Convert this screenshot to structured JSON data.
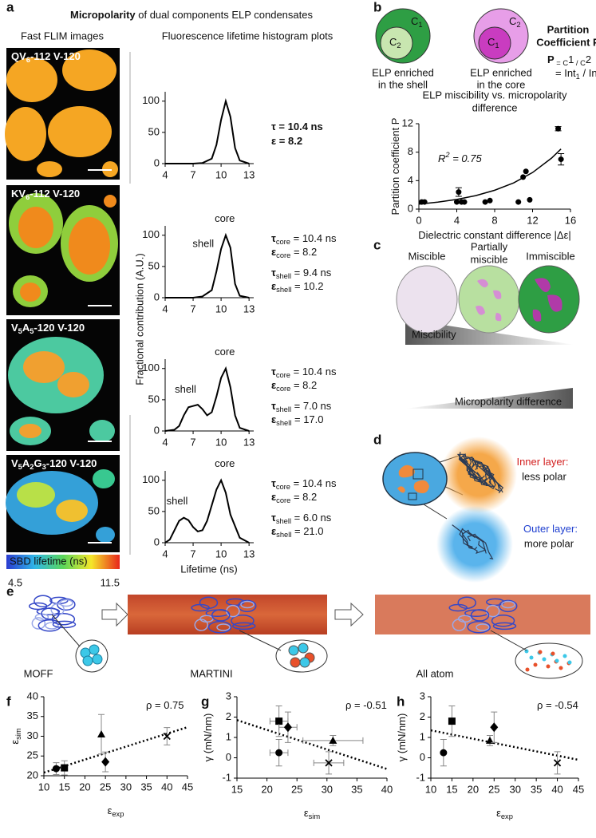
{
  "panel_labels": [
    "a",
    "b",
    "c",
    "d",
    "e",
    "f",
    "g",
    "h"
  ],
  "panel_a": {
    "title_bold": "Micropolarity",
    "title_rest": " of dual components ELP condensates",
    "images_heading": "Fast FLIM images",
    "plots_heading": "Fluorescence lifetime histogram plots",
    "images": [
      [
        "QV",
        "6",
        "-112 V-120"
      ],
      [
        "KV",
        "6",
        "-112 V-120"
      ],
      [
        "V",
        "5",
        "A",
        "5",
        "-120 V-120"
      ],
      [
        "V",
        "5",
        "A",
        "2",
        "G",
        "3",
        "-120 V-120"
      ]
    ],
    "colorbar": {
      "label": "SBD lifetime (ns)",
      "range": [
        4.5,
        11.5
      ]
    },
    "xlabel": "Lifetime (ns)",
    "ylabel": "Fractional contribution (A.U.)"
  },
  "panel_b": {
    "circles": [
      {
        "outer": [
          "C",
          "1"
        ],
        "inner": [
          "C",
          "2"
        ],
        "caption": [
          "ELP enriched",
          "in the shell"
        ]
      },
      {
        "outer": [
          "C",
          "2"
        ],
        "inner": [
          "C",
          "1"
        ],
        "caption": [
          "ELP enriched",
          "in the core"
        ]
      }
    ],
    "heading": [
      "Partition",
      "Coefficient P"
    ],
    "formula": [
      [
        "P",
        " = C",
        "1",
        " / C",
        "2"
      ],
      [
        "= Int",
        "1",
        " / Int",
        "2"
      ]
    ]
  },
  "panel_c": {
    "states": [
      [
        "Miscible"
      ],
      [
        "Partially",
        "miscible"
      ],
      [
        "Immiscible"
      ]
    ],
    "gradients": [
      "Miscibility",
      "Micropolarity difference"
    ]
  },
  "panel_d": {
    "inner": [
      "Inner layer:",
      "less polar"
    ],
    "outer": [
      "Outer layer:",
      "more polar"
    ]
  },
  "panel_e": {
    "stages": [
      "MOFF",
      "MARTINI",
      "All atom"
    ]
  },
  "chart_data": [
    {
      "type": "line",
      "color": "#000000",
      "x": [
        4,
        5,
        6,
        7,
        8,
        9,
        9.5,
        10,
        10.5,
        11,
        11.5,
        12,
        13
      ],
      "values": [
        0,
        0,
        0,
        0,
        1,
        8,
        30,
        70,
        100,
        75,
        25,
        5,
        0
      ],
      "xlim": [
        4,
        13.5
      ],
      "ylim": [
        0,
        115
      ],
      "xticks": [
        4,
        7,
        10,
        13
      ],
      "yticks": [
        0,
        50,
        100
      ],
      "annotations": [
        [
          "τ = 10.4 ns"
        ],
        [
          "ε = 8.2"
        ]
      ]
    },
    {
      "type": "line",
      "color": "#000000",
      "x": [
        4,
        5,
        6,
        7,
        8,
        9,
        9.5,
        10,
        10.5,
        11,
        11.5,
        12,
        13
      ],
      "values": [
        0,
        0,
        0,
        0,
        2,
        12,
        42,
        78,
        100,
        80,
        22,
        3,
        0
      ],
      "xlim": [
        4,
        13.5
      ],
      "ylim": [
        0,
        115
      ],
      "xticks": [
        4,
        7,
        10,
        13
      ],
      "yticks": [
        0,
        50,
        100
      ],
      "peak_labels": [
        "core",
        "shell"
      ],
      "annotations": [
        [
          "τ",
          "core",
          " = 10.4 ns"
        ],
        [
          "ε",
          "core",
          " = 8.2"
        ],
        [
          "τ",
          "shell",
          " = 9.4 ns"
        ],
        [
          "ε",
          "shell",
          " = 10.2"
        ]
      ]
    },
    {
      "type": "line",
      "color": "#000000",
      "x": [
        4,
        5,
        5.5,
        6,
        6.5,
        7,
        7.5,
        8,
        8.5,
        9,
        9.5,
        10,
        10.5,
        11,
        11.5,
        12,
        13
      ],
      "values": [
        0,
        2,
        8,
        25,
        38,
        40,
        42,
        35,
        25,
        30,
        55,
        85,
        100,
        70,
        25,
        5,
        0
      ],
      "xlim": [
        4,
        13.5
      ],
      "ylim": [
        0,
        115
      ],
      "xticks": [
        4,
        7,
        10,
        13
      ],
      "yticks": [
        0,
        50,
        100
      ],
      "peak_labels": [
        "core",
        "shell"
      ],
      "annotations": [
        [
          "τ",
          "core",
          " = 10.4 ns"
        ],
        [
          "ε",
          "core",
          " = 8.2"
        ],
        [
          "τ",
          "shell",
          " = 7.0 ns"
        ],
        [
          "ε",
          "shell",
          " = 17.0"
        ]
      ]
    },
    {
      "type": "line",
      "color": "#000000",
      "x": [
        4,
        4.5,
        5,
        5.5,
        6,
        6.5,
        7,
        7.5,
        8,
        8.5,
        9,
        9.5,
        10,
        10.5,
        11,
        12,
        13
      ],
      "values": [
        0,
        5,
        20,
        35,
        40,
        36,
        25,
        18,
        20,
        35,
        60,
        85,
        100,
        80,
        45,
        8,
        0
      ],
      "xlim": [
        4,
        13.5
      ],
      "ylim": [
        0,
        115
      ],
      "xticks": [
        4,
        7,
        10,
        13
      ],
      "yticks": [
        0,
        50,
        100
      ],
      "peak_labels": [
        "core",
        "shell"
      ],
      "annotations": [
        [
          "τ",
          "core",
          " = 10.4 ns"
        ],
        [
          "ε",
          "core",
          " = 8.2"
        ],
        [
          "τ",
          "shell",
          " = 6.0 ns"
        ],
        [
          "ε",
          "shell",
          " = 21.0"
        ]
      ]
    },
    {
      "type": "scatter",
      "color": "#000000",
      "title": [
        "ELP miscibility vs. micropolarity",
        "difference"
      ],
      "x": [
        0.3,
        0.6,
        4,
        4.2,
        4.5,
        4.8,
        7,
        7.5,
        10.5,
        11,
        11.3,
        11.7,
        14.7,
        15
      ],
      "values": [
        1,
        1,
        1,
        2.4,
        1,
        1,
        1,
        1.2,
        1,
        4.5,
        5.3,
        1.3,
        11.3,
        7
      ],
      "y_err": [
        null,
        null,
        null,
        0.6,
        null,
        null,
        null,
        null,
        null,
        null,
        null,
        null,
        0.3,
        0.8
      ],
      "xlim": [
        0,
        16
      ],
      "ylim": [
        0,
        12
      ],
      "xticks": [
        0,
        4,
        8,
        12,
        16
      ],
      "yticks": [
        0,
        4,
        8,
        12
      ],
      "xlabel": [
        "Dielectric constant difference |Δε|"
      ],
      "ylabel": [
        "Partition coefficient P"
      ],
      "annotation": [
        "R",
        "2",
        " = 0.75"
      ],
      "fit": {
        "style": "solid",
        "x": [
          0,
          2,
          4,
          6,
          8,
          10,
          12,
          14,
          15
        ],
        "values": [
          0.7,
          0.98,
          1.36,
          1.89,
          2.65,
          3.68,
          5.14,
          7.16,
          8.45
        ]
      }
    },
    {
      "type": "scatter",
      "color": "#000000",
      "markers": [
        "circle",
        "square",
        "triangle",
        "diamond",
        "x"
      ],
      "x": [
        13,
        15,
        24,
        25,
        40
      ],
      "values": [
        21.8,
        22,
        30.5,
        23.5,
        30
      ],
      "y_err": [
        1.5,
        1.8,
        5,
        2.5,
        2.2
      ],
      "xlim": [
        10,
        45
      ],
      "ylim": [
        20,
        40
      ],
      "xticks": [
        10,
        15,
        20,
        25,
        30,
        35,
        40,
        45
      ],
      "yticks": [
        20,
        25,
        30,
        35,
        40
      ],
      "xlabel": [
        "ε",
        "exp"
      ],
      "ylabel": [
        "ε",
        "sim"
      ],
      "annotation": [
        "ρ = 0.75"
      ],
      "fit": {
        "style": "dotted",
        "x": [
          10,
          45
        ],
        "values": [
          20.8,
          32.3
        ]
      }
    },
    {
      "type": "scatter",
      "color": "#000000",
      "markers": [
        "circle",
        "square",
        "triangle",
        "diamond",
        "x"
      ],
      "x": [
        22,
        22,
        31,
        23.5,
        30.3
      ],
      "values": [
        0.25,
        1.8,
        0.85,
        1.5,
        -0.25
      ],
      "y_err": [
        0.65,
        0.75,
        0.25,
        0.75,
        0.55
      ],
      "x_err": [
        1.5,
        1.5,
        5,
        1.5,
        2.5
      ],
      "xlim": [
        15,
        40
      ],
      "ylim": [
        -1,
        3
      ],
      "xticks": [
        15,
        20,
        25,
        30,
        35,
        40
      ],
      "yticks": [
        -1,
        0,
        1,
        2,
        3
      ],
      "xlabel": [
        "ε",
        "sim"
      ],
      "ylabel": [
        "γ (mN/nm)"
      ],
      "annotation": [
        "ρ = -0.51"
      ],
      "fit": {
        "style": "dotted",
        "x": [
          15,
          40
        ],
        "values": [
          1.85,
          -0.55
        ]
      }
    },
    {
      "type": "scatter",
      "color": "#000000",
      "markers": [
        "circle",
        "square",
        "triangle",
        "diamond",
        "x"
      ],
      "x": [
        13,
        15,
        24,
        25,
        40
      ],
      "values": [
        0.25,
        1.8,
        0.85,
        1.5,
        -0.25
      ],
      "y_err": [
        0.65,
        0.75,
        0.25,
        0.75,
        0.55
      ],
      "xlim": [
        10,
        45
      ],
      "ylim": [
        -1,
        3
      ],
      "xticks": [
        10,
        15,
        20,
        25,
        30,
        35,
        40,
        45
      ],
      "yticks": [
        -1,
        0,
        1,
        2,
        3
      ],
      "xlabel": [
        "ε",
        "exp"
      ],
      "ylabel": [
        "γ (mN/nm)"
      ],
      "annotation": [
        "ρ = -0.54"
      ],
      "fit": {
        "style": "dotted",
        "x": [
          10,
          45
        ],
        "values": [
          1.35,
          -0.1
        ]
      }
    }
  ]
}
